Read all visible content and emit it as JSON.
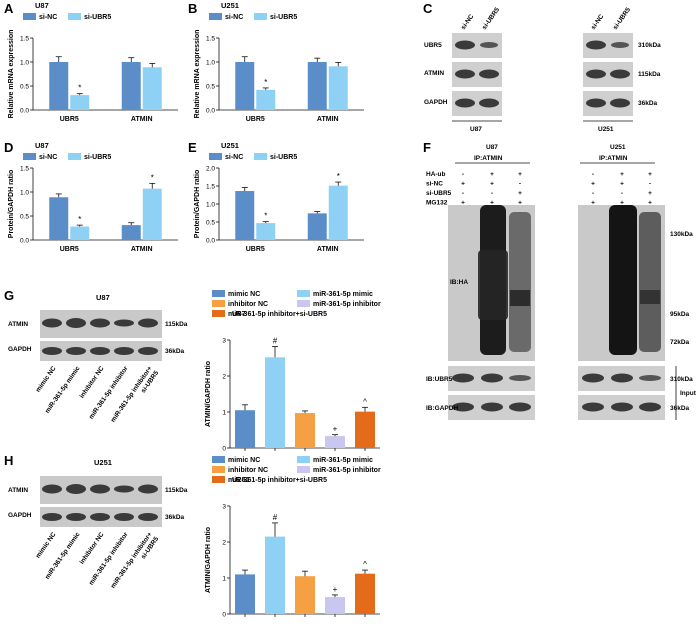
{
  "colors": {
    "dark_blue": "#5b8dc8",
    "light_blue": "#8fd0f5",
    "orange": "#f5a042",
    "lavender": "#c9c6ef",
    "dark_orange": "#e36b19",
    "blot_bg": "#c9c9c9",
    "band": "#3a3a3a"
  },
  "panels": {
    "A": {
      "letter": "A",
      "title": "U87"
    },
    "B": {
      "letter": "B",
      "title": "U251"
    },
    "C": {
      "letter": "C",
      "lane_labels": [
        "si-NC",
        "si-UBR5"
      ],
      "rows": [
        "UBR5",
        "ATMIN",
        "GAPDH"
      ],
      "sizes": [
        "310kDa",
        "115kDa",
        "36kDa"
      ],
      "cells": [
        "U87",
        "U251"
      ]
    },
    "D": {
      "letter": "D",
      "title": "U87"
    },
    "E": {
      "letter": "E",
      "title": "U251"
    },
    "F": {
      "letter": "F",
      "cells": [
        "U87",
        "U251"
      ],
      "ip": "IP:ATMIN",
      "rows": [
        {
          "label": "HA-ub",
          "values": [
            "-",
            "+",
            "+"
          ]
        },
        {
          "label": "si-NC",
          "values": [
            "+",
            "+",
            "-"
          ]
        },
        {
          "label": "si-UBR5",
          "values": [
            "-",
            "-",
            "+"
          ]
        },
        {
          "label": "MG132",
          "values": [
            "+",
            "+",
            "+"
          ]
        }
      ],
      "ib_ha": "IB:HA",
      "ib_ubr5": "IB:UBR5",
      "ib_gapdh": "IB:GAPDH",
      "input": "Input",
      "markers": [
        "130kDa",
        "95kDa",
        "72kDa"
      ],
      "sizes": [
        "310kDa",
        "36kDa"
      ]
    },
    "G": {
      "letter": "G",
      "cell": "U87",
      "rows": [
        "ATMIN",
        "GAPDH"
      ],
      "sizes": [
        "115kDa",
        "36kDa"
      ]
    },
    "H": {
      "letter": "H",
      "cell": "U251",
      "rows": [
        "ATMIN",
        "GAPDH"
      ],
      "sizes": [
        "115kDa",
        "36kDa"
      ]
    }
  },
  "lane_labels_5": [
    "mimic NC",
    "miR-361-5p mimic",
    "inhibitor NC",
    "miR-361-5p inhibitor",
    "miR-361-5p inhibitor+ si-UBR5"
  ],
  "chart_data": [
    {
      "panel": "A",
      "type": "bar",
      "title": "U87",
      "categories": [
        "UBR5",
        "ATMIN"
      ],
      "ylabel": "Relative mRNA expression",
      "ylim": [
        0,
        1.5
      ],
      "yticks": [
        0,
        0.5,
        1.0,
        1.5
      ],
      "series": [
        {
          "name": "si-NC",
          "values": [
            1.0,
            1.0
          ],
          "errors": [
            0.11,
            0.09
          ],
          "color": "#5b8dc8"
        },
        {
          "name": "si-UBR5",
          "values": [
            0.31,
            0.89
          ],
          "errors": [
            0.03,
            0.08
          ],
          "color": "#8fd0f5"
        }
      ],
      "annotations": [
        {
          "series": 1,
          "category": 0,
          "text": "*"
        }
      ]
    },
    {
      "panel": "B",
      "type": "bar",
      "title": "U251",
      "categories": [
        "UBR5",
        "ATMIN"
      ],
      "ylabel": "Relative mRNA expression",
      "ylim": [
        0,
        1.5
      ],
      "yticks": [
        0,
        0.5,
        1.0,
        1.5
      ],
      "series": [
        {
          "name": "si-NC",
          "values": [
            1.0,
            1.0
          ],
          "errors": [
            0.11,
            0.08
          ],
          "color": "#5b8dc8"
        },
        {
          "name": "si-UBR5",
          "values": [
            0.42,
            0.91
          ],
          "errors": [
            0.04,
            0.08
          ],
          "color": "#8fd0f5"
        }
      ],
      "annotations": [
        {
          "series": 1,
          "category": 0,
          "text": "*"
        }
      ]
    },
    {
      "panel": "D",
      "type": "bar",
      "title": "U87",
      "categories": [
        "UBR5",
        "ATMIN"
      ],
      "ylabel": "Protein/GAPDH ratio",
      "ylim": [
        0,
        1.5
      ],
      "yticks": [
        0,
        0.5,
        1.0,
        1.5
      ],
      "series": [
        {
          "name": "si-NC",
          "values": [
            0.89,
            0.31
          ],
          "errors": [
            0.07,
            0.05
          ],
          "color": "#5b8dc8"
        },
        {
          "name": "si-UBR5",
          "values": [
            0.28,
            1.07
          ],
          "errors": [
            0.03,
            0.11
          ],
          "color": "#8fd0f5"
        }
      ],
      "annotations": [
        {
          "series": 1,
          "category": 0,
          "text": "*"
        },
        {
          "series": 1,
          "category": 1,
          "text": "*"
        }
      ]
    },
    {
      "panel": "E",
      "type": "bar",
      "title": "U251",
      "categories": [
        "UBR5",
        "ATMIN"
      ],
      "ylabel": "Protein/GAPDH ratio",
      "ylim": [
        0,
        2.0
      ],
      "yticks": [
        0,
        0.5,
        1.0,
        1.5,
        2.0
      ],
      "series": [
        {
          "name": "si-NC",
          "values": [
            1.36,
            0.74
          ],
          "errors": [
            0.1,
            0.05
          ],
          "color": "#5b8dc8"
        },
        {
          "name": "si-UBR5",
          "values": [
            0.47,
            1.51
          ],
          "errors": [
            0.04,
            0.1
          ],
          "color": "#8fd0f5"
        }
      ],
      "annotations": [
        {
          "series": 1,
          "category": 0,
          "text": "*"
        },
        {
          "series": 1,
          "category": 1,
          "text": "*"
        }
      ]
    },
    {
      "panel": "G",
      "type": "bar",
      "title": "U87",
      "categories": [
        "mimic NC",
        "miR-361-5p mimic",
        "inhibitor NC",
        "miR-361-5p inhibitor",
        "miR-361-5p inhibitor+si-UBR5"
      ],
      "ylabel": "ATMIN/GAPDH ratio",
      "ylim": [
        0,
        3
      ],
      "yticks": [
        0,
        1,
        2,
        3
      ],
      "values": [
        1.05,
        2.52,
        0.97,
        0.33,
        1.01
      ],
      "errors": [
        0.15,
        0.3,
        0.06,
        0.04,
        0.12
      ],
      "colors": [
        "#5b8dc8",
        "#8fd0f5",
        "#f5a042",
        "#c9c6ef",
        "#e36b19"
      ],
      "annotations": [
        "",
        "#",
        "",
        "+",
        "^"
      ]
    },
    {
      "panel": "H",
      "type": "bar",
      "title": "U251",
      "categories": [
        "mimic NC",
        "miR-361-5p mimic",
        "inhibitor NC",
        "miR-361-5p inhibitor",
        "miR-361-5p inhibitor+si-UBR5"
      ],
      "ylabel": "ATMIN/GAPDH ratio",
      "ylim": [
        0,
        3
      ],
      "yticks": [
        0,
        1,
        2,
        3
      ],
      "values": [
        1.1,
        2.15,
        1.05,
        0.47,
        1.12
      ],
      "errors": [
        0.12,
        0.38,
        0.14,
        0.06,
        0.1
      ],
      "colors": [
        "#5b8dc8",
        "#8fd0f5",
        "#f5a042",
        "#c9c6ef",
        "#e36b19"
      ],
      "annotations": [
        "",
        "#",
        "",
        "+",
        "^"
      ]
    }
  ]
}
